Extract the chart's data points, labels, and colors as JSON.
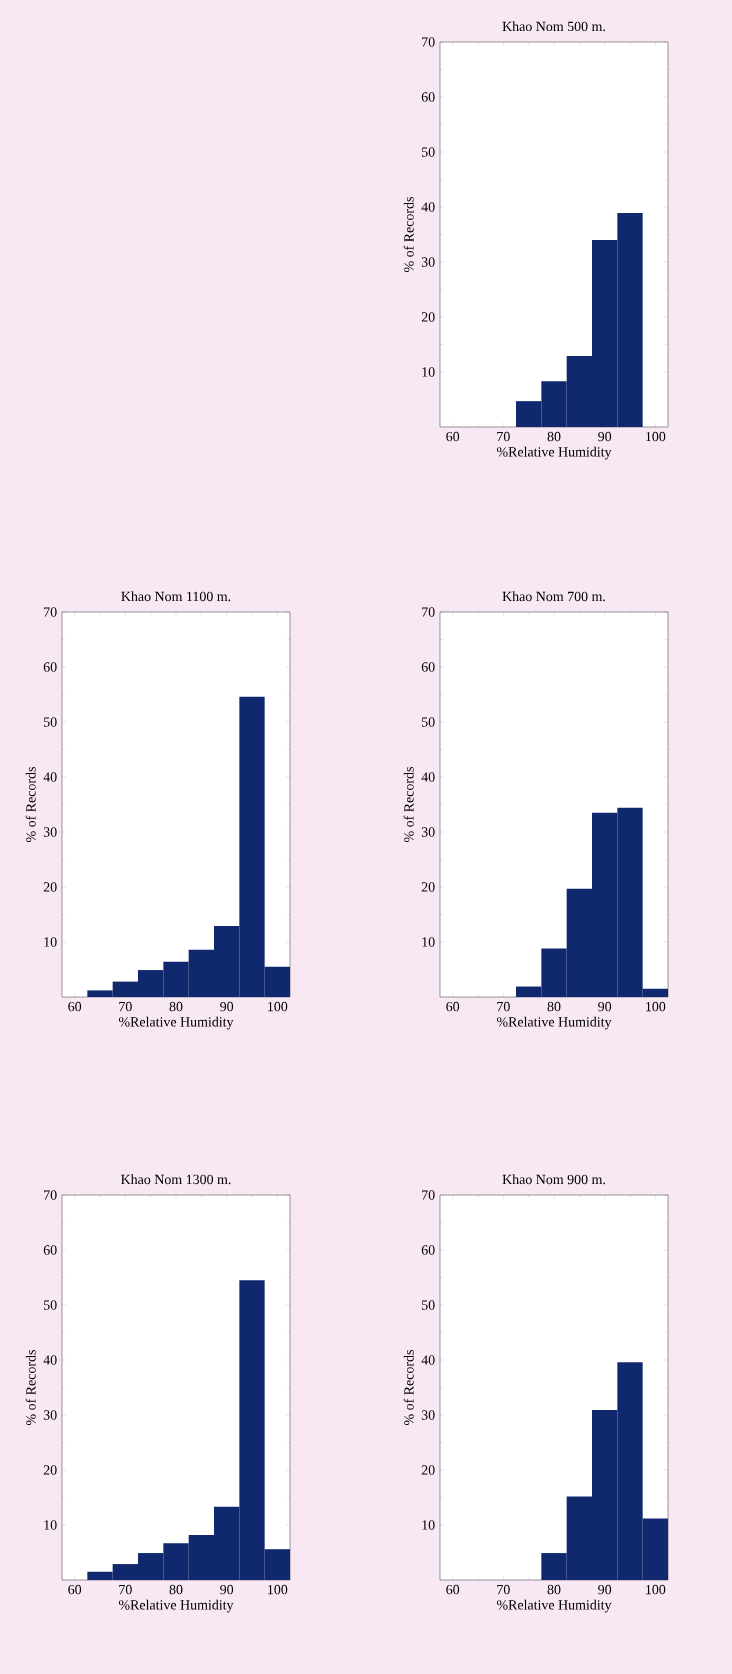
{
  "chart_data": [
    {
      "type": "histogram",
      "title": "Khao Nom 1300 m.",
      "xlabel": "%Relative Humidity",
      "ylabel": "% of Records",
      "bins": [
        62.5,
        67.5,
        72.5,
        77.5,
        82.5,
        87.5,
        92.5,
        97.5,
        102.5
      ],
      "values": [
        1.5,
        2.9,
        4.9,
        6.7,
        8.2,
        13.3,
        54.5,
        5.6
      ],
      "color": "#10296e",
      "xlim": [
        57.5,
        102.5
      ],
      "ylim": [
        0,
        70
      ],
      "xticks": [
        60,
        70,
        80,
        90,
        100
      ],
      "yticks": [
        10,
        20,
        30,
        40,
        50,
        60,
        70
      ]
    },
    {
      "type": "histogram",
      "title": "Khao Nom 1100 m.",
      "xlabel": "%Relative Humidity",
      "ylabel": "% of Records",
      "bins": [
        62.5,
        67.5,
        72.5,
        77.5,
        82.5,
        87.5,
        92.5,
        97.5,
        102.5
      ],
      "values": [
        1.2,
        2.8,
        4.9,
        6.4,
        8.6,
        12.9,
        54.6,
        5.5
      ],
      "color": "#10296e",
      "xlim": [
        57.5,
        102.5
      ],
      "ylim": [
        0,
        70
      ],
      "xticks": [
        60,
        70,
        80,
        90,
        100
      ],
      "yticks": [
        10,
        20,
        30,
        40,
        50,
        60,
        70
      ]
    },
    {
      "type": "histogram",
      "title": "Khao Nom 900 m.",
      "xlabel": "%Relative Humidity",
      "ylabel": "% of Records",
      "bins": [
        77.5,
        82.5,
        87.5,
        92.5,
        97.5,
        102.5
      ],
      "values": [
        4.9,
        15.2,
        30.9,
        39.6,
        11.2
      ],
      "color": "#10296e",
      "xlim": [
        57.5,
        102.5
      ],
      "ylim": [
        0,
        70
      ],
      "xticks": [
        60,
        70,
        80,
        90,
        100
      ],
      "yticks": [
        10,
        20,
        30,
        40,
        50,
        60,
        70
      ]
    },
    {
      "type": "histogram",
      "title": "Khao Nom 700 m.",
      "xlabel": "%Relative Humidity",
      "ylabel": "% of Records",
      "bins": [
        72.5,
        77.5,
        82.5,
        87.5,
        92.5,
        97.5,
        102.5
      ],
      "values": [
        1.9,
        8.8,
        19.7,
        33.5,
        34.4,
        1.5
      ],
      "color": "#10296e",
      "xlim": [
        57.5,
        102.5
      ],
      "ylim": [
        0,
        70
      ],
      "xticks": [
        60,
        70,
        80,
        90,
        100
      ],
      "yticks": [
        10,
        20,
        30,
        40,
        50,
        60,
        70
      ]
    },
    {
      "type": "histogram",
      "title": "Khao Nom 500 m.",
      "xlabel": "%Relative Humidity",
      "ylabel": "% of Records",
      "bins": [
        72.5,
        77.5,
        82.5,
        87.5,
        92.5,
        97.5
      ],
      "values": [
        4.7,
        8.3,
        12.9,
        34,
        38.9
      ],
      "color": "#10296e",
      "xlim": [
        57.5,
        102.5
      ],
      "ylim": [
        0,
        70
      ],
      "xticks": [
        60,
        70,
        80,
        90,
        100
      ],
      "yticks": [
        10,
        20,
        30,
        40,
        50,
        60,
        70
      ]
    }
  ]
}
